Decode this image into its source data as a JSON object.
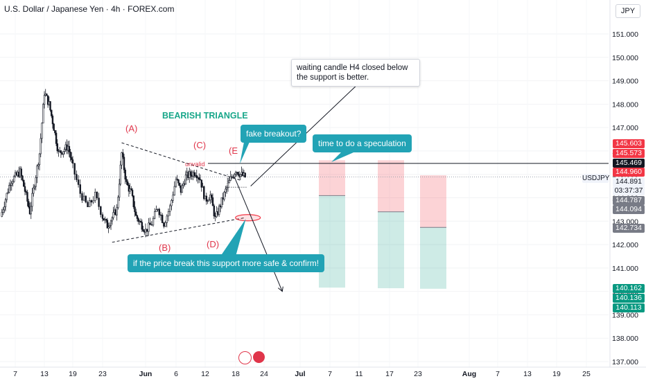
{
  "header": {
    "title": "U.S. Dollar / Japanese Yen · 4h · FOREX.com",
    "currency": "JPY"
  },
  "annotations": {
    "note": "waiting candle H4 closed below the support is better.",
    "pattern_title": "BEARISH TRIANGLE",
    "fake_breakout": "fake breakout?",
    "speculation": "time to do a speculation",
    "break_support": "if the price break this support more safe & confirm!",
    "unvalid": "unvalid",
    "waves": {
      "A": "(A)",
      "B": "(B)",
      "C": "(C)",
      "D": "(D)",
      "E": "(E"
    }
  },
  "symbol_tag": "USDJPY",
  "price_labels": [
    {
      "text": "145.603",
      "bg": "#f23645",
      "fg": "#ffffff",
      "y": 145.603
    },
    {
      "text": "145.573",
      "bg": "#f23645",
      "fg": "#ffffff",
      "y": 145.573
    },
    {
      "text": "145.469",
      "bg": "#131722",
      "fg": "#ffffff",
      "y": 145.469
    },
    {
      "text": "144.960",
      "bg": "#f23645",
      "fg": "#ffffff",
      "y": 144.96
    },
    {
      "text": "144.891",
      "bg": "#f0f3fa",
      "fg": "#131722",
      "y": 144.891
    },
    {
      "text": "03:37:37",
      "bg": "#f0f3fa",
      "fg": "#131722",
      "y": 144.891
    },
    {
      "text": "144.787",
      "bg": "#787b86",
      "fg": "#ffffff",
      "y": 144.787
    },
    {
      "text": "144.094",
      "bg": "#787b86",
      "fg": "#ffffff",
      "y": 144.094
    },
    {
      "text": "142.734",
      "bg": "#787b86",
      "fg": "#ffffff",
      "y": 142.734
    },
    {
      "text": "140.162",
      "bg": "#089981",
      "fg": "#ffffff",
      "y": 140.162
    },
    {
      "text": "140.136",
      "bg": "#089981",
      "fg": "#ffffff",
      "y": 140.136
    },
    {
      "text": "140.113",
      "bg": "#089981",
      "fg": "#ffffff",
      "y": 140.113
    }
  ],
  "chart_data": {
    "type": "candlestick",
    "ylim": [
      137.0,
      151.6
    ],
    "y_ticks": [
      137.0,
      138.0,
      139.0,
      140.0,
      141.0,
      142.0,
      143.0,
      144.0,
      145.0,
      146.0,
      147.0,
      148.0,
      149.0,
      150.0,
      151.0
    ],
    "y_tick_labels": [
      "137.000",
      "138.000",
      "139.000",
      "140.000",
      "141.000",
      "142.000",
      "143.000",
      "144.000",
      "145.000",
      "146.000",
      "147.000",
      "148.000",
      "149.000",
      "150.000",
      "151.000"
    ],
    "x_ticks": [
      "7",
      "13",
      "19",
      "23",
      "Jun",
      "6",
      "12",
      "18",
      "24",
      "Jul",
      "7",
      "11",
      "17",
      "23",
      "Aug",
      "7",
      "13",
      "19",
      "25"
    ],
    "x_ticks_bold": [
      "Jun",
      "Jul",
      "Aug"
    ],
    "current_price": 144.891,
    "triangle": {
      "upper": [
        [
          "May 27",
          146.35
        ],
        [
          "Jun 19",
          144.75
        ]
      ],
      "lower": [
        [
          "May 25",
          142.1
        ],
        [
          "Jun 20",
          143.15
        ]
      ]
    },
    "resistance_level": 145.469,
    "projection_target": 140.0,
    "positions": [
      {
        "entry": 144.094,
        "stop": 145.603,
        "target": 140.162
      },
      {
        "entry": 143.4,
        "stop": 145.603,
        "target": 140.136
      },
      {
        "entry": 142.734,
        "stop": 144.96,
        "target": 140.113
      }
    ],
    "price_path": [
      [
        "May 4",
        143.2
      ],
      [
        "May 6",
        144.7
      ],
      [
        "May 8",
        145.1
      ],
      [
        "May 9",
        144.3
      ],
      [
        "May 10",
        143.4
      ],
      [
        "May 12",
        145.9
      ],
      [
        "May 13",
        148.5
      ],
      [
        "May 14",
        148.0
      ],
      [
        "May 15",
        147.0
      ],
      [
        "May 16",
        145.9
      ],
      [
        "May 18",
        146.2
      ],
      [
        "May 19",
        145.3
      ],
      [
        "May 20",
        144.2
      ],
      [
        "May 21",
        143.6
      ],
      [
        "May 22",
        144.1
      ],
      [
        "May 23",
        143.2
      ],
      [
        "May 24",
        142.8
      ],
      [
        "May 26",
        143.5
      ],
      [
        "May 27",
        145.9
      ],
      [
        "May 28",
        144.6
      ],
      [
        "May 29",
        144.2
      ],
      [
        "May 30",
        143.2
      ],
      [
        "Jun 1",
        142.6
      ],
      [
        "Jun 2",
        142.9
      ],
      [
        "Jun 3",
        143.6
      ],
      [
        "Jun 4",
        142.9
      ],
      [
        "Jun 5",
        143.6
      ],
      [
        "Jun 6",
        144.8
      ],
      [
        "Jun 7",
        144.3
      ],
      [
        "Jun 8",
        144.9
      ],
      [
        "Jun 10",
        145.1
      ],
      [
        "Jun 11",
        144.8
      ],
      [
        "Jun 12",
        143.9
      ],
      [
        "Jun 13",
        144.1
      ],
      [
        "Jun 14",
        143.1
      ],
      [
        "Jun 15",
        143.7
      ],
      [
        "Jun 16",
        144.3
      ],
      [
        "Jun 17",
        144.8
      ],
      [
        "Jun 18",
        145.2
      ],
      [
        "Jun 19",
        145.0
      ],
      [
        "Jun 20",
        144.89
      ]
    ]
  }
}
